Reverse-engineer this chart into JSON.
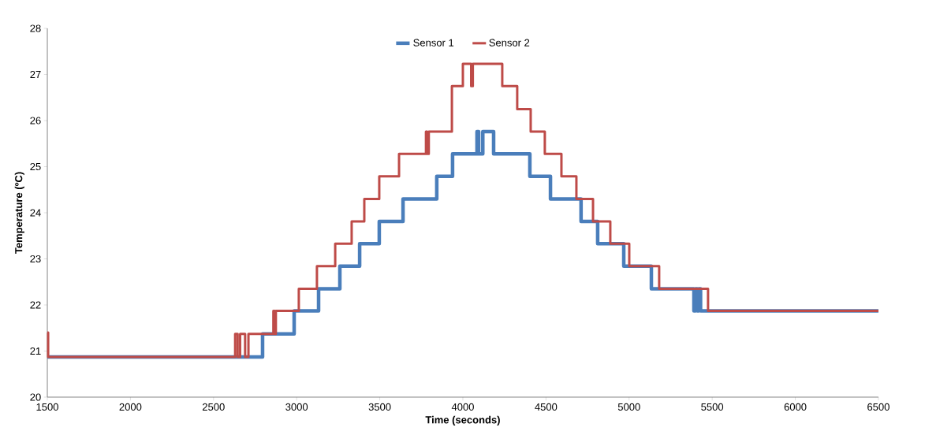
{
  "chart_data": {
    "type": "step",
    "xlabel": "Time (seconds)",
    "ylabel": "Temperature (ºC)",
    "xlim": [
      1500,
      6500
    ],
    "ylim": [
      20,
      28
    ],
    "xticks": [
      1500,
      2000,
      2500,
      3000,
      3500,
      4000,
      4500,
      5000,
      5500,
      6000,
      6500
    ],
    "yticks": [
      20,
      21,
      22,
      23,
      24,
      25,
      26,
      27,
      28
    ],
    "grid": false,
    "legend": "top",
    "marker": "none",
    "line_style": "solid",
    "series": [
      {
        "name": "Sensor 1",
        "color": "#4a7ebb",
        "x": [
          1500,
          2795,
          2985,
          3132,
          3260,
          3379,
          3497,
          3640,
          3843,
          3938,
          4085,
          4095,
          4120,
          4185,
          4403,
          4527,
          4711,
          4811,
          4968,
          5134,
          5390,
          5400,
          5410,
          5420,
          5430,
          6500
        ],
        "values": [
          20.87,
          21.37,
          21.87,
          22.35,
          22.84,
          23.33,
          23.81,
          24.3,
          24.79,
          25.28,
          25.76,
          25.28,
          25.76,
          25.28,
          24.79,
          24.3,
          23.81,
          23.33,
          22.84,
          22.35,
          21.87,
          22.35,
          21.87,
          22.35,
          21.87,
          21.87
        ]
      },
      {
        "name": "Sensor 2",
        "color": "#be4b48",
        "x": [
          1500,
          1505,
          2630,
          2645,
          2660,
          2690,
          2710,
          2860,
          2868,
          2875,
          3013,
          3122,
          3232,
          3331,
          3407,
          3497,
          3616,
          3778,
          3785,
          3795,
          3934,
          4000,
          4050,
          4060,
          4237,
          4327,
          4408,
          4493,
          4593,
          4683,
          4783,
          4887,
          5001,
          5181,
          5475,
          6500
        ],
        "values": [
          21.4,
          20.87,
          21.37,
          20.87,
          21.37,
          20.87,
          21.37,
          21.87,
          21.37,
          21.87,
          22.35,
          22.84,
          23.33,
          23.81,
          24.3,
          24.79,
          25.28,
          25.76,
          25.28,
          25.76,
          26.75,
          27.23,
          26.75,
          27.23,
          26.75,
          26.25,
          25.76,
          25.28,
          24.79,
          24.3,
          23.81,
          23.33,
          22.84,
          22.35,
          21.87,
          21.87
        ]
      }
    ]
  }
}
